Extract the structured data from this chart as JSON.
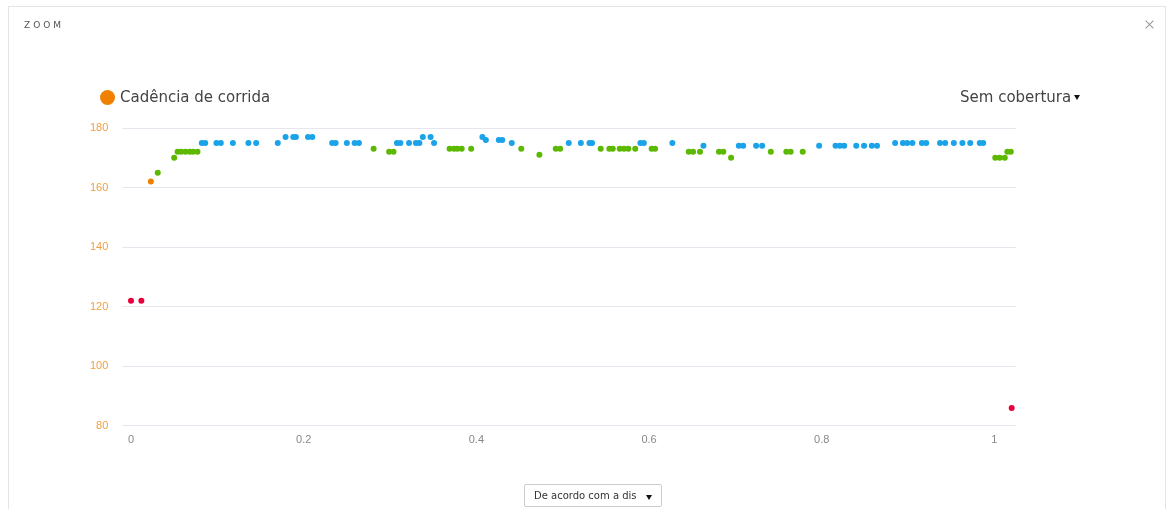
{
  "chart_data": {
    "type": "scatter",
    "legend": "top left",
    "grid": "y",
    "marker": "circle",
    "xlim": [
      -0.01,
      1.025
    ],
    "xticks": [
      0,
      0.2,
      0.4,
      0.6,
      0.8,
      1
    ],
    "ylim": [
      80,
      180
    ],
    "yticks": [
      80,
      100,
      120,
      140,
      160,
      180
    ],
    "annotations": [
      "ZOOM",
      "Sem cobertura",
      "De acordo com a dis"
    ],
    "series": [
      {
        "name": "Cadência de corrida",
        "color": "#f08000",
        "x": [
          0,
          0.012,
          0.023,
          0.031,
          0.05,
          0.054,
          0.058,
          0.063,
          0.068,
          0.072,
          0.077,
          0.082,
          0.086,
          0.099,
          0.104,
          0.118,
          0.136,
          0.145,
          0.17,
          0.179,
          0.188,
          0.191,
          0.205,
          0.21,
          0.233,
          0.237,
          0.25,
          0.259,
          0.264,
          0.281,
          0.299,
          0.304,
          0.308,
          0.312,
          0.322,
          0.33,
          0.334,
          0.338,
          0.347,
          0.351,
          0.369,
          0.374,
          0.378,
          0.383,
          0.394,
          0.407,
          0.411,
          0.426,
          0.43,
          0.441,
          0.452,
          0.473,
          0.492,
          0.497,
          0.507,
          0.521,
          0.531,
          0.534,
          0.544,
          0.554,
          0.558,
          0.566,
          0.571,
          0.576,
          0.584,
          0.59,
          0.594,
          0.603,
          0.607,
          0.627,
          0.646,
          0.651,
          0.659,
          0.663,
          0.681,
          0.686,
          0.695,
          0.704,
          0.709,
          0.724,
          0.731,
          0.741,
          0.759,
          0.764,
          0.778,
          0.797,
          0.816,
          0.821,
          0.826,
          0.84,
          0.849,
          0.858,
          0.864,
          0.885,
          0.894,
          0.899,
          0.905,
          0.916,
          0.921,
          0.937,
          0.943,
          0.953,
          0.963,
          0.972,
          0.983,
          0.987,
          1.001,
          1.006,
          1.012,
          1.015,
          1.019,
          1.02
        ],
        "values": [
          122,
          122,
          162,
          165,
          170,
          172,
          172,
          172,
          172,
          172,
          172,
          175,
          175,
          175,
          175,
          175,
          175,
          175,
          175,
          177,
          177,
          177,
          177,
          177,
          175,
          175,
          175,
          175,
          175,
          173,
          172,
          172,
          175,
          175,
          175,
          175,
          175,
          177,
          177,
          175,
          173,
          173,
          173,
          173,
          173,
          177,
          176,
          176,
          176,
          175,
          173,
          171,
          173,
          173,
          175,
          175,
          175,
          175,
          173,
          173,
          173,
          173,
          173,
          173,
          173,
          175,
          175,
          173,
          173,
          175,
          172,
          172,
          172,
          174,
          172,
          172,
          170,
          174,
          174,
          174,
          174,
          172,
          172,
          172,
          172,
          174,
          174,
          174,
          174,
          174,
          174,
          174,
          174,
          175,
          175,
          175,
          175,
          175,
          175,
          175,
          175,
          175,
          175,
          175,
          175,
          175,
          170,
          170,
          170,
          172,
          172,
          86
        ],
        "colors": [
          "#e8003a",
          "#e8003a",
          "#f08000",
          "#5cb800",
          "#5cb800",
          "#5cb800",
          "#5cb800",
          "#5cb800",
          "#5cb800",
          "#5cb800",
          "#5cb800",
          "#1aa3e8",
          "#1aa3e8",
          "#1aa3e8",
          "#1aa3e8",
          "#1aa3e8",
          "#1aa3e8",
          "#1aa3e8",
          "#1aa3e8",
          "#1aa3e8",
          "#1aa3e8",
          "#1aa3e8",
          "#1aa3e8",
          "#1aa3e8",
          "#1aa3e8",
          "#1aa3e8",
          "#1aa3e8",
          "#1aa3e8",
          "#1aa3e8",
          "#5cb800",
          "#5cb800",
          "#5cb800",
          "#1aa3e8",
          "#1aa3e8",
          "#1aa3e8",
          "#1aa3e8",
          "#1aa3e8",
          "#1aa3e8",
          "#1aa3e8",
          "#1aa3e8",
          "#5cb800",
          "#5cb800",
          "#5cb800",
          "#5cb800",
          "#5cb800",
          "#1aa3e8",
          "#1aa3e8",
          "#1aa3e8",
          "#1aa3e8",
          "#1aa3e8",
          "#5cb800",
          "#5cb800",
          "#5cb800",
          "#5cb800",
          "#1aa3e8",
          "#1aa3e8",
          "#1aa3e8",
          "#1aa3e8",
          "#5cb800",
          "#5cb800",
          "#5cb800",
          "#5cb800",
          "#5cb800",
          "#5cb800",
          "#5cb800",
          "#1aa3e8",
          "#1aa3e8",
          "#5cb800",
          "#5cb800",
          "#1aa3e8",
          "#5cb800",
          "#5cb800",
          "#5cb800",
          "#1aa3e8",
          "#5cb800",
          "#5cb800",
          "#5cb800",
          "#1aa3e8",
          "#1aa3e8",
          "#1aa3e8",
          "#1aa3e8",
          "#5cb800",
          "#5cb800",
          "#5cb800",
          "#5cb800",
          "#1aa3e8",
          "#1aa3e8",
          "#1aa3e8",
          "#1aa3e8",
          "#1aa3e8",
          "#1aa3e8",
          "#1aa3e8",
          "#1aa3e8",
          "#1aa3e8",
          "#1aa3e8",
          "#1aa3e8",
          "#1aa3e8",
          "#1aa3e8",
          "#1aa3e8",
          "#1aa3e8",
          "#1aa3e8",
          "#1aa3e8",
          "#1aa3e8",
          "#1aa3e8",
          "#1aa3e8",
          "#1aa3e8",
          "#5cb800",
          "#5cb800",
          "#5cb800",
          "#5cb800",
          "#5cb800",
          "#e8003a"
        ]
      }
    ]
  }
}
